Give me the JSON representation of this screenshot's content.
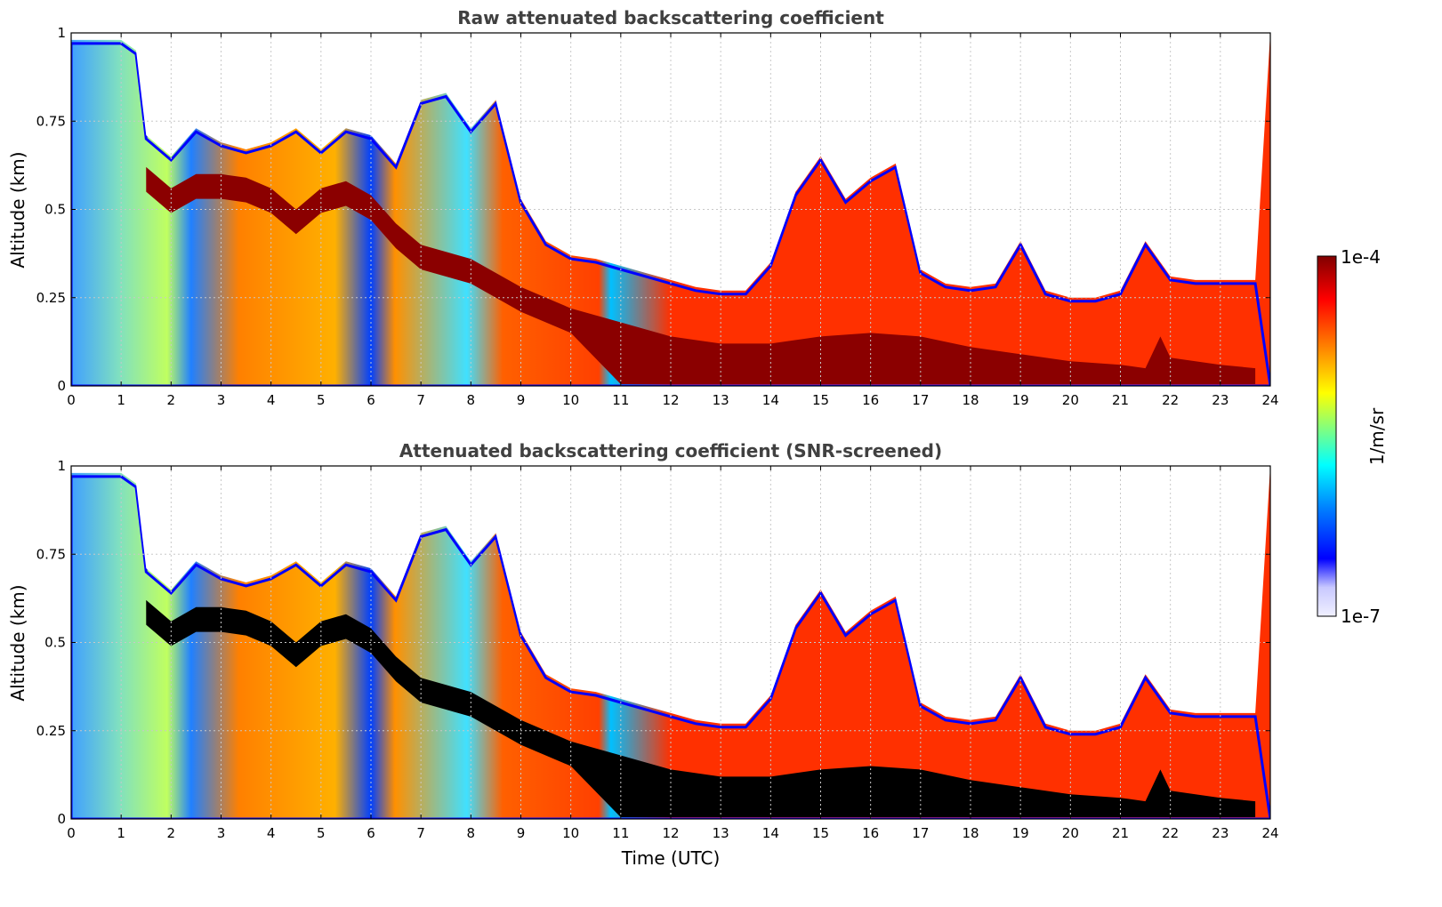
{
  "chart_data": [
    {
      "type": "heatmap",
      "id": "raw",
      "title": "Raw attenuated backscattering coefficient",
      "xlabel": "",
      "ylabel": "Altitude (km)",
      "xlim": [
        0,
        24
      ],
      "ylim": [
        0,
        1
      ],
      "xticks": [
        "0",
        "1",
        "2",
        "3",
        "4",
        "5",
        "6",
        "7",
        "8",
        "9",
        "10",
        "11",
        "12",
        "13",
        "14",
        "15",
        "16",
        "17",
        "18",
        "19",
        "20",
        "21",
        "22",
        "23",
        "24"
      ],
      "yticks": [
        "0",
        "0.25",
        "0.5",
        "0.75",
        "1"
      ],
      "grid": true,
      "layer_top_km": [
        [
          0,
          0.95
        ],
        [
          0.5,
          0.95
        ],
        [
          1.0,
          0.95
        ],
        [
          1.3,
          0.92
        ],
        [
          1.5,
          0.68
        ],
        [
          2.0,
          0.62
        ],
        [
          2.5,
          0.7
        ],
        [
          3.0,
          0.66
        ],
        [
          3.5,
          0.64
        ],
        [
          4.0,
          0.66
        ],
        [
          4.5,
          0.7
        ],
        [
          5.0,
          0.64
        ],
        [
          5.5,
          0.7
        ],
        [
          6.0,
          0.68
        ],
        [
          6.5,
          0.6
        ],
        [
          7.0,
          0.78
        ],
        [
          7.5,
          0.8
        ],
        [
          8.0,
          0.7
        ],
        [
          8.5,
          0.78
        ],
        [
          9.0,
          0.5
        ],
        [
          9.5,
          0.38
        ],
        [
          10.0,
          0.34
        ],
        [
          10.5,
          0.33
        ],
        [
          11.0,
          0.31
        ],
        [
          11.5,
          0.29
        ],
        [
          12.0,
          0.27
        ],
        [
          12.5,
          0.25
        ],
        [
          13.0,
          0.24
        ],
        [
          13.5,
          0.24
        ],
        [
          14.0,
          0.32
        ],
        [
          14.5,
          0.52
        ],
        [
          15.0,
          0.62
        ],
        [
          15.5,
          0.5
        ],
        [
          16.0,
          0.56
        ],
        [
          16.5,
          0.6
        ],
        [
          17.0,
          0.3
        ],
        [
          17.5,
          0.26
        ],
        [
          18.0,
          0.25
        ],
        [
          18.5,
          0.26
        ],
        [
          19.0,
          0.38
        ],
        [
          19.5,
          0.24
        ],
        [
          20.0,
          0.22
        ],
        [
          20.5,
          0.22
        ],
        [
          21.0,
          0.24
        ],
        [
          21.5,
          0.38
        ],
        [
          22.0,
          0.28
        ],
        [
          22.5,
          0.27
        ],
        [
          23.0,
          0.27
        ],
        [
          23.7,
          0.27
        ]
      ],
      "strong_layer_km": [
        [
          1.5,
          0.62
        ],
        [
          2.0,
          0.56
        ],
        [
          2.5,
          0.6
        ],
        [
          3.0,
          0.6
        ],
        [
          3.5,
          0.59
        ],
        [
          4.0,
          0.56
        ],
        [
          4.5,
          0.5
        ],
        [
          5.0,
          0.56
        ],
        [
          5.5,
          0.58
        ],
        [
          6.0,
          0.54
        ],
        [
          6.5,
          0.46
        ],
        [
          7.0,
          0.4
        ],
        [
          8.0,
          0.36
        ],
        [
          9.0,
          0.28
        ],
        [
          10.0,
          0.22
        ],
        [
          11.0,
          0.18
        ],
        [
          12.0,
          0.14
        ],
        [
          13.0,
          0.12
        ],
        [
          14.0,
          0.12
        ],
        [
          15.0,
          0.14
        ],
        [
          16.0,
          0.15
        ],
        [
          17.0,
          0.14
        ],
        [
          18.0,
          0.11
        ],
        [
          19.0,
          0.09
        ],
        [
          20.0,
          0.07
        ],
        [
          21.0,
          0.06
        ],
        [
          21.5,
          0.05
        ],
        [
          21.8,
          0.14
        ],
        [
          22.0,
          0.08
        ],
        [
          23.0,
          0.06
        ],
        [
          23.7,
          0.05
        ]
      ]
    },
    {
      "type": "heatmap",
      "id": "screened",
      "title": "Attenuated backscattering coefficient (SNR-screened)",
      "xlabel": "Time (UTC)",
      "ylabel": "Altitude (km)",
      "xlim": [
        0,
        24
      ],
      "ylim": [
        0,
        1
      ],
      "xticks": [
        "0",
        "1",
        "2",
        "3",
        "4",
        "5",
        "6",
        "7",
        "8",
        "9",
        "10",
        "11",
        "12",
        "13",
        "14",
        "15",
        "16",
        "17",
        "18",
        "19",
        "20",
        "21",
        "22",
        "23",
        "24"
      ],
      "yticks": [
        "0",
        "0.25",
        "0.5",
        "0.75",
        "1"
      ],
      "grid": true,
      "colorbar": {
        "label": "1/m/sr",
        "min_label": "1e-7",
        "max_label": "1e-4",
        "colors": [
          "#f0f0ff",
          "#c8c8ff",
          "#0000ff",
          "#0080ff",
          "#00ffff",
          "#80ff80",
          "#ffff00",
          "#ff8000",
          "#ff0000",
          "#800000"
        ]
      }
    }
  ]
}
